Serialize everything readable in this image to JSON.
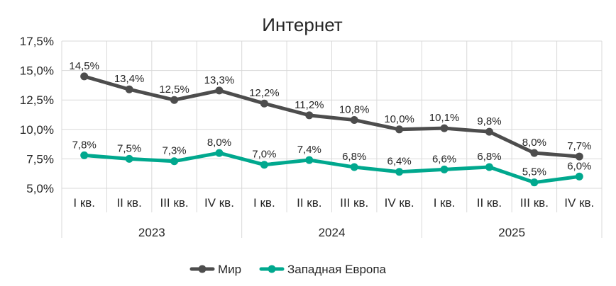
{
  "chart_data": {
    "type": "line",
    "title": "Интернет",
    "xlabel": "",
    "ylabel": "",
    "ylim": [
      5.0,
      17.5
    ],
    "yticks": [
      "5,0%",
      "7,5%",
      "10,0%",
      "12,5%",
      "15,0%",
      "17,5%"
    ],
    "categories": [
      "I кв.",
      "II кв.",
      "III кв.",
      "IV кв.",
      "I кв.",
      "II кв.",
      "III кв.",
      "IV кв.",
      "I кв.",
      "II кв.",
      "III кв.",
      "IV кв."
    ],
    "groups": [
      {
        "label": "2023",
        "count": 4
      },
      {
        "label": "2024",
        "count": 4
      },
      {
        "label": "2025",
        "count": 4
      }
    ],
    "grid": true,
    "legend_position": "bottom",
    "series": [
      {
        "name": "Мир",
        "color": "#4d4d4d",
        "values": [
          14.5,
          13.4,
          12.5,
          13.3,
          12.2,
          11.2,
          10.8,
          10.0,
          10.1,
          9.8,
          8.0,
          7.7
        ],
        "labels": [
          "14,5%",
          "13,4%",
          "12,5%",
          "13,3%",
          "12,2%",
          "11,2%",
          "10,8%",
          "10,0%",
          "10,1%",
          "9,8%",
          "8,0%",
          "7,7%"
        ]
      },
      {
        "name": "Западная Европа",
        "color": "#00a88e",
        "values": [
          7.8,
          7.5,
          7.3,
          8.0,
          7.0,
          7.4,
          6.8,
          6.4,
          6.6,
          6.8,
          5.5,
          6.0
        ],
        "labels": [
          "7,8%",
          "7,5%",
          "7,3%",
          "8,0%",
          "7,0%",
          "7,4%",
          "6,8%",
          "6,4%",
          "6,6%",
          "6,8%",
          "5,5%",
          "6,0%"
        ]
      }
    ]
  }
}
